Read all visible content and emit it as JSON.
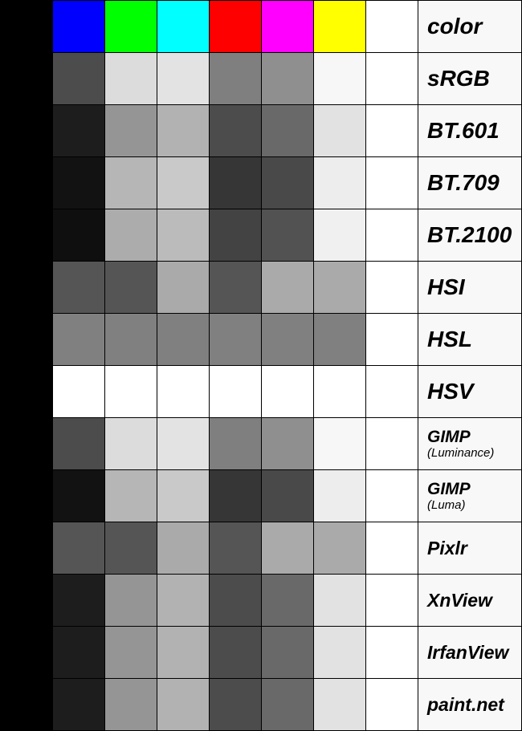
{
  "swatch_colors": [
    "#0000ff",
    "#00ff00",
    "#00ffff",
    "#ff0000",
    "#ff00ff",
    "#ffff00",
    "#ffffff"
  ],
  "rows": [
    {
      "label": "color",
      "sub": "",
      "size": "large",
      "cells": [
        "#0000ff",
        "#00ff00",
        "#00ffff",
        "#ff0000",
        "#ff00ff",
        "#ffff00",
        "#ffffff"
      ]
    },
    {
      "label": "sRGB",
      "sub": "",
      "size": "large",
      "cells": [
        "#4c4c4c",
        "#dcdcdc",
        "#e3e3e3",
        "#7f7f7f",
        "#8f8f8f",
        "#f7f7f7",
        "#ffffff"
      ]
    },
    {
      "label": "BT.601",
      "sub": "",
      "size": "large",
      "cells": [
        "#1d1d1d",
        "#959595",
        "#b2b2b2",
        "#4c4c4c",
        "#696969",
        "#e2e2e2",
        "#ffffff"
      ]
    },
    {
      "label": "BT.709",
      "sub": "",
      "size": "large",
      "cells": [
        "#121212",
        "#b6b6b6",
        "#c9c9c9",
        "#363636",
        "#494949",
        "#ededed",
        "#ffffff"
      ]
    },
    {
      "label": "BT.2100",
      "sub": "",
      "size": "large",
      "cells": [
        "#0f0f0f",
        "#acacac",
        "#bbbbbb",
        "#434343",
        "#525252",
        "#f0f0f0",
        "#ffffff"
      ]
    },
    {
      "label": "HSI",
      "sub": "",
      "size": "large",
      "cells": [
        "#555555",
        "#555555",
        "#aaaaaa",
        "#555555",
        "#aaaaaa",
        "#aaaaaa",
        "#ffffff"
      ]
    },
    {
      "label": "HSL",
      "sub": "",
      "size": "large",
      "cells": [
        "#808080",
        "#808080",
        "#808080",
        "#808080",
        "#808080",
        "#808080",
        "#ffffff"
      ]
    },
    {
      "label": "HSV",
      "sub": "",
      "size": "large",
      "cells": [
        "#ffffff",
        "#ffffff",
        "#ffffff",
        "#ffffff",
        "#ffffff",
        "#ffffff",
        "#ffffff"
      ]
    },
    {
      "label": "GIMP",
      "sub": "(Luminance)",
      "size": "small",
      "cells": [
        "#4c4c4c",
        "#dcdcdc",
        "#e3e3e3",
        "#7f7f7f",
        "#8f8f8f",
        "#f7f7f7",
        "#ffffff"
      ]
    },
    {
      "label": "GIMP",
      "sub": "(Luma)",
      "size": "small",
      "cells": [
        "#121212",
        "#b6b6b6",
        "#c9c9c9",
        "#363636",
        "#494949",
        "#ededed",
        "#ffffff"
      ]
    },
    {
      "label": "Pixlr",
      "sub": "",
      "size": "medium",
      "cells": [
        "#555555",
        "#555555",
        "#aaaaaa",
        "#555555",
        "#aaaaaa",
        "#aaaaaa",
        "#ffffff"
      ]
    },
    {
      "label": "XnView",
      "sub": "",
      "size": "medium",
      "cells": [
        "#1d1d1d",
        "#959595",
        "#b2b2b2",
        "#4c4c4c",
        "#696969",
        "#e2e2e2",
        "#ffffff"
      ]
    },
    {
      "label": "IrfanView",
      "sub": "",
      "size": "medium",
      "cells": [
        "#1d1d1d",
        "#959595",
        "#b2b2b2",
        "#4c4c4c",
        "#696969",
        "#e2e2e2",
        "#ffffff"
      ]
    },
    {
      "label": "paint.net",
      "sub": "",
      "size": "medium",
      "cells": [
        "#1d1d1d",
        "#959595",
        "#b2b2b2",
        "#4c4c4c",
        "#696969",
        "#e2e2e2",
        "#ffffff"
      ]
    }
  ]
}
